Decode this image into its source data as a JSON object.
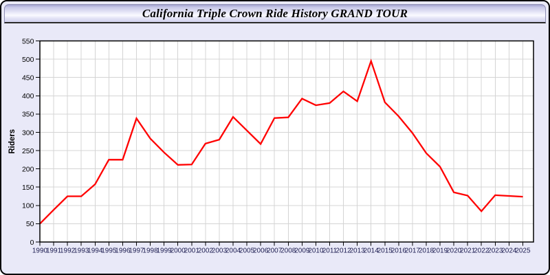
{
  "titlebar": {
    "title": "California Triple Crown Ride History GRAND TOUR"
  },
  "colors": {
    "line": "#ff0000",
    "grid": "#d4d4d4",
    "plot_background": "#ffffff",
    "frame": "#000000",
    "page_background": "#e9e9f8",
    "y_label_color": "#000000",
    "x_label_color": "#1c1c50"
  },
  "chart_data": {
    "type": "line",
    "title": "California Triple Crown Ride History GRAND TOUR",
    "xlabel": "",
    "ylabel": "Riders",
    "ylim": [
      0,
      550
    ],
    "ytick_step": 50,
    "grid": true,
    "legend_position": "none",
    "x": [
      1990,
      1991,
      1992,
      1993,
      1994,
      1995,
      1996,
      1997,
      1998,
      1999,
      2000,
      2001,
      2002,
      2003,
      2004,
      2005,
      2006,
      2007,
      2008,
      2009,
      2010,
      2011,
      2012,
      2013,
      2014,
      2015,
      2016,
      2017,
      2018,
      2019,
      2020,
      2021,
      2022,
      2023,
      2024,
      2025
    ],
    "series": [
      {
        "name": "Riders",
        "values": [
          50,
          88,
          125,
          125,
          158,
          225,
          225,
          338,
          283,
          245,
          211,
          212,
          269,
          280,
          342,
          305,
          268,
          339,
          341,
          392,
          374,
          380,
          412,
          385,
          495,
          382,
          344,
          298,
          243,
          206,
          136,
          127,
          84,
          128,
          126,
          124
        ]
      }
    ]
  }
}
